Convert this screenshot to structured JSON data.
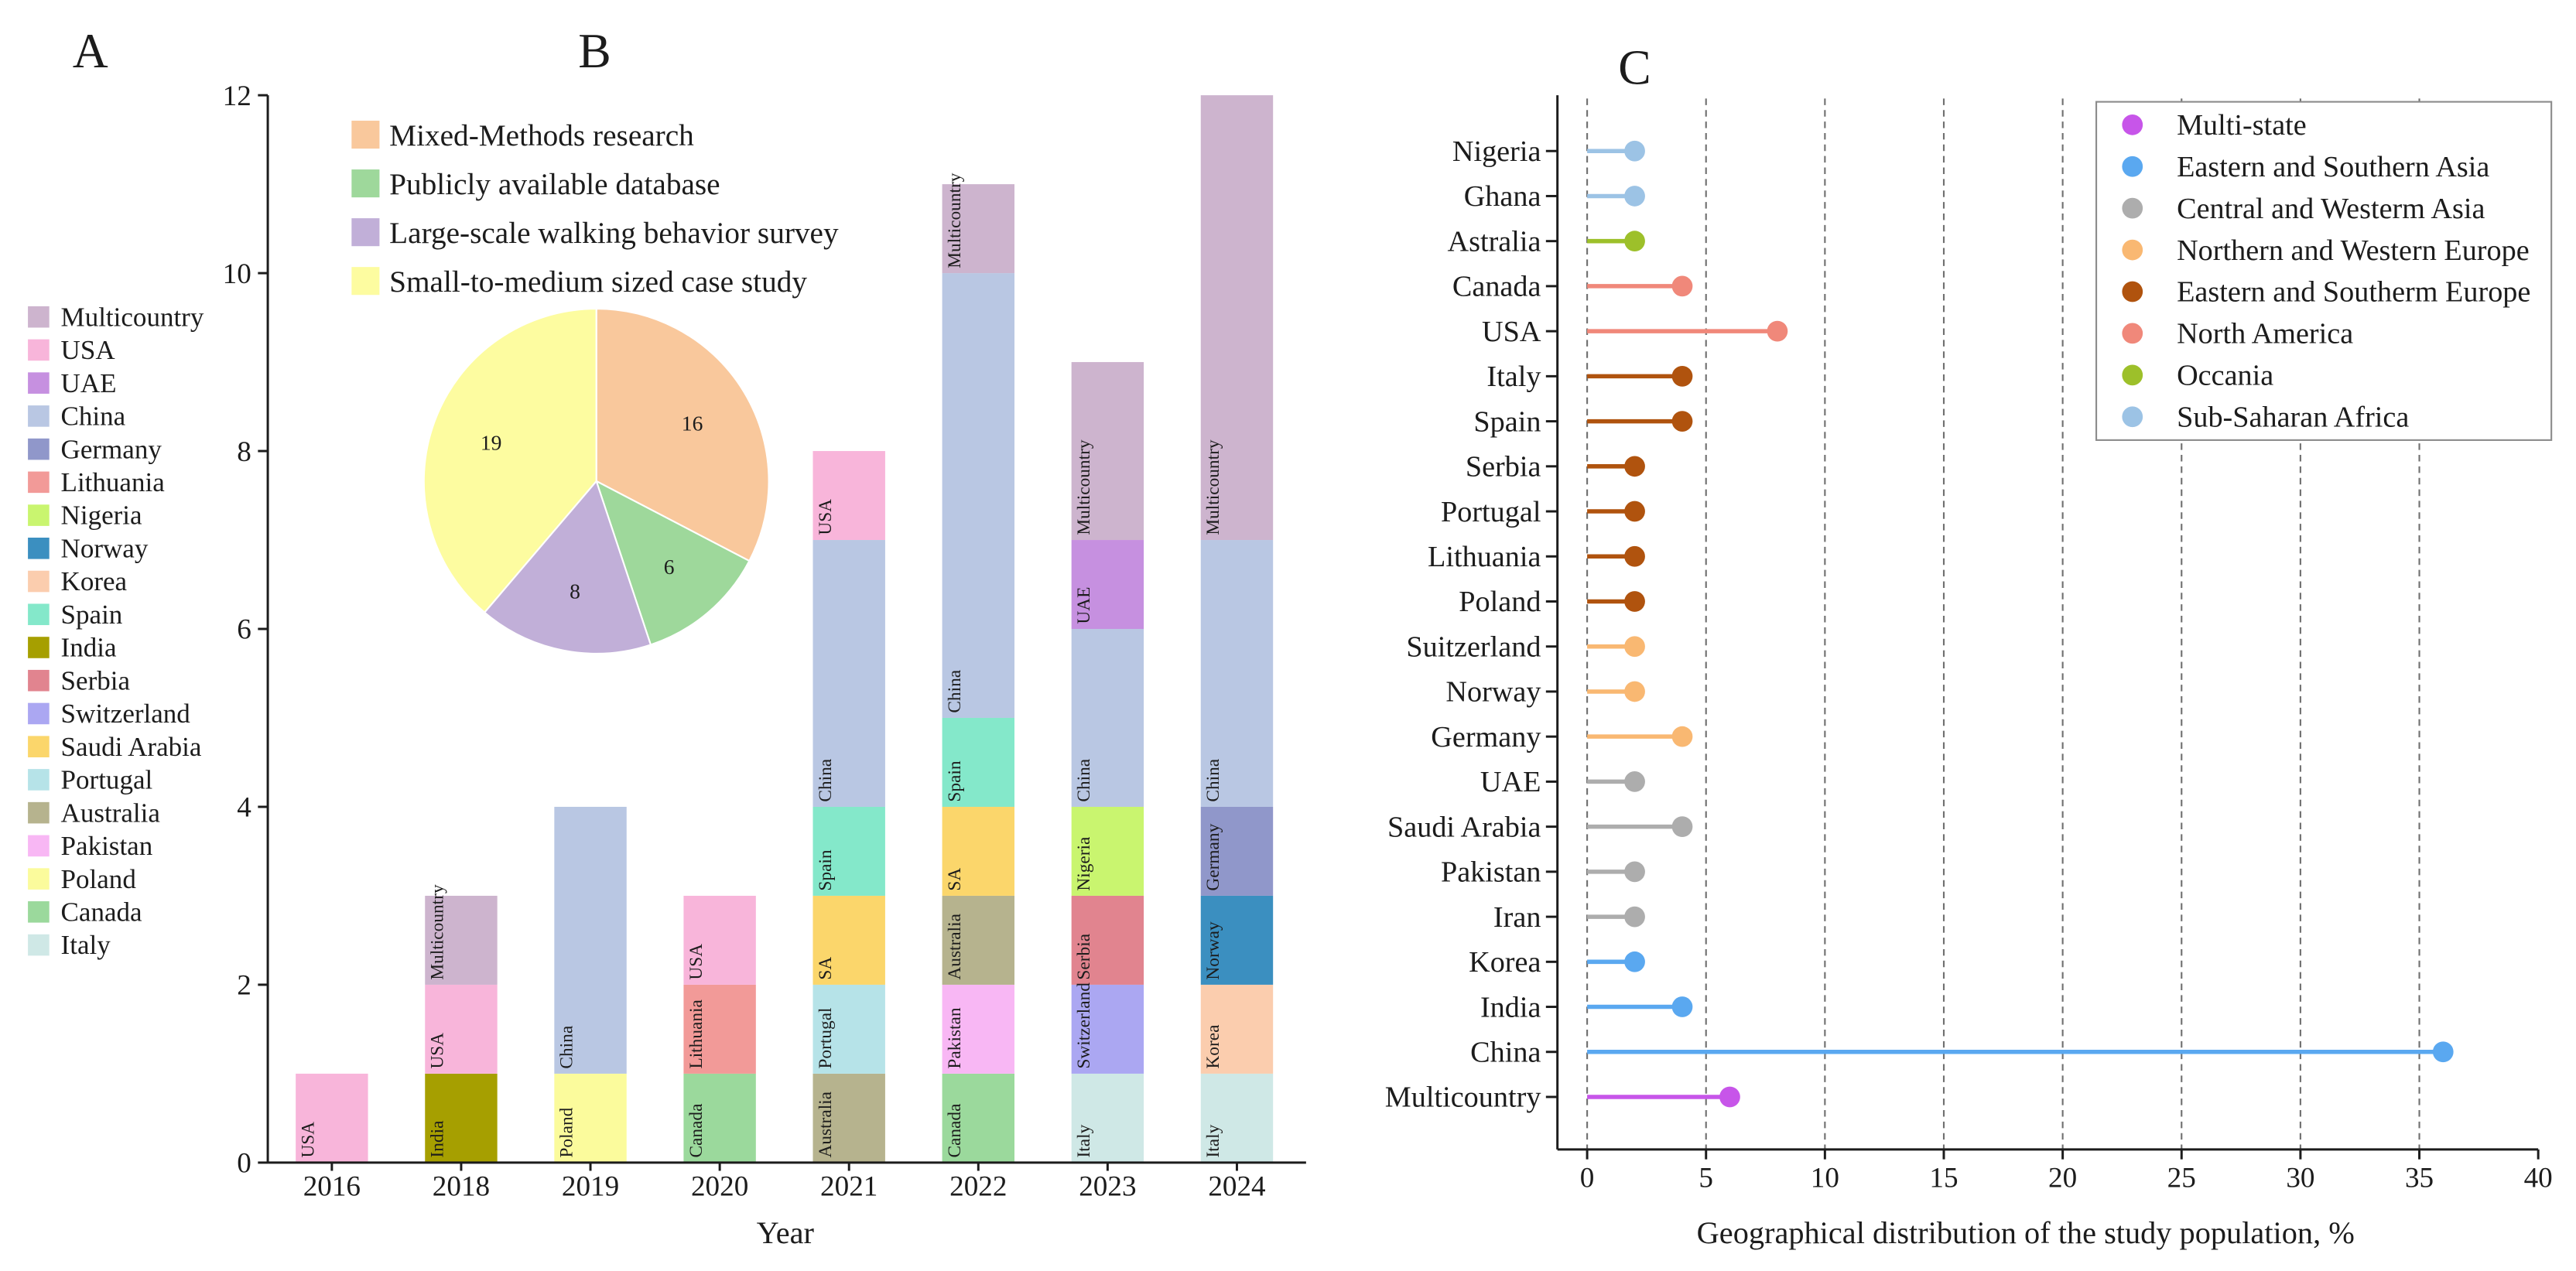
{
  "panel_labels": {
    "a": "A",
    "b": "B",
    "c": "C"
  },
  "chart_data": [
    {
      "type": "bar",
      "stacked": true,
      "xlabel": "Year",
      "categories": [
        "2016",
        "2018",
        "2019",
        "2020",
        "2021",
        "2022",
        "2023",
        "2024"
      ],
      "ylim": [
        0,
        12
      ],
      "yticks": [
        0,
        2,
        4,
        6,
        8,
        10,
        12
      ],
      "grid": false,
      "legend": {
        "placement": "left",
        "entries": [
          {
            "name": "Multicountry",
            "color": "#CDB4CE"
          },
          {
            "name": "USA",
            "color": "#F8B5DA"
          },
          {
            "name": "UAE",
            "color": "#C690E0"
          },
          {
            "name": "China",
            "color": "#B9C7E3"
          },
          {
            "name": "Germany",
            "color": "#9097CA"
          },
          {
            "name": "Lithuania",
            "color": "#F29A98"
          },
          {
            "name": "Nigeria",
            "color": "#C9F56F"
          },
          {
            "name": "Norway",
            "color": "#3B8FC0"
          },
          {
            "name": "Korea",
            "color": "#FBCDAE"
          },
          {
            "name": "Spain",
            "color": "#84E8CA"
          },
          {
            "name": "India",
            "color": "#A69F00"
          },
          {
            "name": "Serbia",
            "color": "#E1848F"
          },
          {
            "name": "Switzerland",
            "color": "#ABA7F2"
          },
          {
            "name": "Saudi Arabia",
            "color": "#FBD66B"
          },
          {
            "name": "Portugal",
            "color": "#B6E3E8"
          },
          {
            "name": "Australia",
            "color": "#B6B38E"
          },
          {
            "name": "Pakistan",
            "color": "#F8B7F4"
          },
          {
            "name": "Poland",
            "color": "#FBFB9C"
          },
          {
            "name": "Canada",
            "color": "#9BD99C"
          },
          {
            "name": "Italy",
            "color": "#CFE8E6"
          }
        ]
      },
      "bars": [
        {
          "segments": [
            {
              "label": "USA",
              "value": 1,
              "color": "#F8B5DA"
            }
          ]
        },
        {
          "segments": [
            {
              "label": "India",
              "value": 1,
              "color": "#A69F00"
            },
            {
              "label": "USA",
              "value": 1,
              "color": "#F8B5DA"
            },
            {
              "label": "Multicountry",
              "value": 1,
              "color": "#CDB4CE"
            }
          ]
        },
        {
          "segments": [
            {
              "label": "Poland",
              "value": 1,
              "color": "#FBFB9C"
            },
            {
              "label": "China",
              "value": 3,
              "color": "#B9C7E3"
            }
          ]
        },
        {
          "segments": [
            {
              "label": "Canada",
              "value": 1,
              "color": "#9BD99C"
            },
            {
              "label": "Lithuania",
              "value": 1,
              "color": "#F29A98"
            },
            {
              "label": "USA",
              "value": 1,
              "color": "#F8B5DA"
            }
          ]
        },
        {
          "segments": [
            {
              "label": "Australia",
              "value": 1,
              "color": "#B6B38E"
            },
            {
              "label": "Portugal",
              "value": 1,
              "color": "#B6E3E8"
            },
            {
              "label": "SA",
              "value": 1,
              "color": "#FBD66B"
            },
            {
              "label": "Spain",
              "value": 1,
              "color": "#84E8CA"
            },
            {
              "label": "China",
              "value": 3,
              "color": "#B9C7E3"
            },
            {
              "label": "USA",
              "value": 1,
              "color": "#F8B5DA"
            }
          ]
        },
        {
          "segments": [
            {
              "label": "Canada",
              "value": 1,
              "color": "#9BD99C"
            },
            {
              "label": "Pakistan",
              "value": 1,
              "color": "#F8B7F4"
            },
            {
              "label": "Australia",
              "value": 1,
              "color": "#B6B38E"
            },
            {
              "label": "SA",
              "value": 1,
              "color": "#FBD66B"
            },
            {
              "label": "Spain",
              "value": 1,
              "color": "#84E8CA"
            },
            {
              "label": "China",
              "value": 5,
              "color": "#B9C7E3"
            },
            {
              "label": "Multicountry",
              "value": 1,
              "color": "#CDB4CE"
            }
          ]
        },
        {
          "segments": [
            {
              "label": "Italy",
              "value": 1,
              "color": "#CFE8E6"
            },
            {
              "label": "Switzerland",
              "value": 1,
              "color": "#ABA7F2"
            },
            {
              "label": "Serbia",
              "value": 1,
              "color": "#E1848F"
            },
            {
              "label": "Nigeria",
              "value": 1,
              "color": "#C9F56F"
            },
            {
              "label": "China",
              "value": 2,
              "color": "#B9C7E3"
            },
            {
              "label": "UAE",
              "value": 1,
              "color": "#C690E0"
            },
            {
              "label": "Multicountry",
              "value": 2,
              "color": "#CDB4CE"
            }
          ]
        },
        {
          "segments": [
            {
              "label": "Italy",
              "value": 1,
              "color": "#CFE8E6"
            },
            {
              "label": "Korea",
              "value": 1,
              "color": "#FBCDAE"
            },
            {
              "label": "Norway",
              "value": 1,
              "color": "#3B8FC0"
            },
            {
              "label": "Germany",
              "value": 1,
              "color": "#9097CA"
            },
            {
              "label": "China",
              "value": 3,
              "color": "#B9C7E3"
            },
            {
              "label": "Multicountry",
              "value": 5,
              "color": "#CDB4CE"
            }
          ]
        }
      ]
    },
    {
      "type": "pie",
      "legend": {
        "placement": "top"
      },
      "slices": [
        {
          "name": "Mixed-Methods research",
          "value": 16,
          "color": "#F9C89C"
        },
        {
          "name": "Publicly available database",
          "value": 6,
          "color": "#9ED89B"
        },
        {
          "name": "Large-scale walking behavior survey",
          "value": 8,
          "color": "#C1AFD8"
        },
        {
          "name": "Small-to-medium sized case study",
          "value": 19,
          "color": "#FDFCA0"
        }
      ]
    },
    {
      "type": "scatter",
      "stem_baseline": 0,
      "xlabel": "Geographical distribution of the study population, %",
      "xlim": [
        -1.25,
        40
      ],
      "xticks": [
        0,
        5,
        10,
        15,
        20,
        25,
        30,
        35,
        40
      ],
      "grid_x": true,
      "grid_y": false,
      "legend": {
        "placement": "top-right"
      },
      "series": [
        {
          "name": "Multi-state",
          "color": "#C755E9",
          "points": [
            {
              "label": "Multicountry",
              "value": 6
            }
          ]
        },
        {
          "name": "Eastern and Southern Asia",
          "color": "#5AA8F0",
          "points": [
            {
              "label": "China",
              "value": 36
            },
            {
              "label": "India",
              "value": 4
            },
            {
              "label": "Korea",
              "value": 2
            }
          ]
        },
        {
          "name": "Central and Westerm Asia",
          "color": "#ADADAD",
          "points": [
            {
              "label": "Iran",
              "value": 2
            },
            {
              "label": "Pakistan",
              "value": 2
            },
            {
              "label": "Saudi Arabia",
              "value": 4
            },
            {
              "label": "UAE",
              "value": 2
            }
          ]
        },
        {
          "name": "Northern and Western Europe",
          "color": "#F9B872",
          "points": [
            {
              "label": "Germany",
              "value": 4
            },
            {
              "label": "Norway",
              "value": 2
            },
            {
              "label": "Suitzerland",
              "value": 2
            }
          ]
        },
        {
          "name": "Eastern and Southerm Europe",
          "color": "#B0530E",
          "points": [
            {
              "label": "Poland",
              "value": 2
            },
            {
              "label": "Lithuania",
              "value": 2
            },
            {
              "label": "Portugal",
              "value": 2
            },
            {
              "label": "Serbia",
              "value": 2
            },
            {
              "label": "Spain",
              "value": 4
            },
            {
              "label": "Italy",
              "value": 4
            }
          ]
        },
        {
          "name": "North America",
          "color": "#F0887A",
          "points": [
            {
              "label": "USA",
              "value": 8
            },
            {
              "label": "Canada",
              "value": 4
            }
          ]
        },
        {
          "name": "Occania",
          "color": "#9DC02A",
          "points": [
            {
              "label": "Astralia",
              "value": 2
            }
          ]
        },
        {
          "name": "Sub-Saharan Africa",
          "color": "#9CC3E5",
          "points": [
            {
              "label": "Ghana",
              "value": 2
            },
            {
              "label": "Nigeria",
              "value": 2
            }
          ]
        }
      ]
    }
  ]
}
